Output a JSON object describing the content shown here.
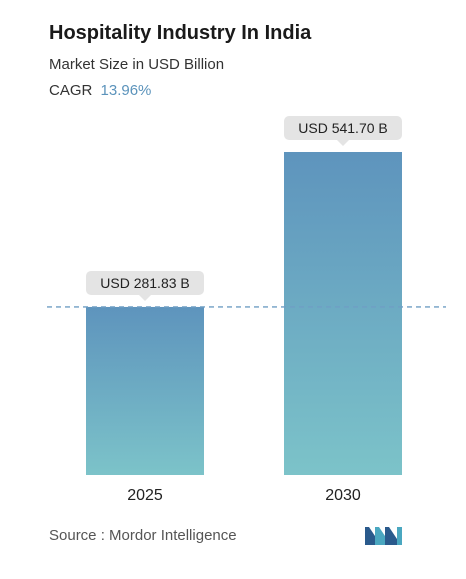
{
  "header": {
    "title": "Hospitality Industry In India",
    "subtitle": "Market Size in USD Billion",
    "cagr_label": "CAGR",
    "cagr_value": "13.96%"
  },
  "footer": {
    "source": "Source :  Mordor Intelligence",
    "logo_icon": "mordor-intelligence-logo-icon"
  },
  "colors": {
    "bar_top": "#5e94bd",
    "bar_bottom": "#7cc3c9",
    "label_bg": "#e4e4e4",
    "dash_line": "#6f9ec4"
  },
  "chart_data": {
    "type": "bar",
    "categories": [
      "2025",
      "2030"
    ],
    "values": [
      281.83,
      541.7
    ],
    "data_labels": [
      "USD 281.83 B",
      "USD 541.70 B"
    ],
    "title": "Hospitality Industry In India",
    "ylabel": "",
    "xlabel": "",
    "ylim": [
      0,
      541.7
    ],
    "grid": false,
    "reference_line": "dashed line at the 2025 value"
  }
}
